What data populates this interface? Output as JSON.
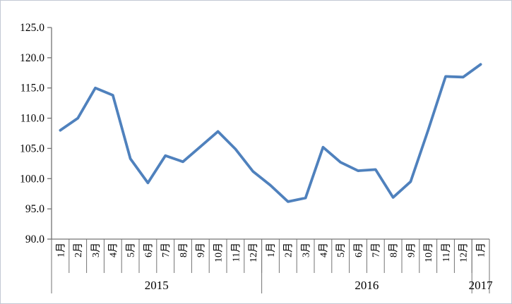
{
  "chart_data": {
    "type": "line",
    "title": "",
    "xlabel": "",
    "ylabel": "",
    "x_labels": [
      "1月",
      "2月",
      "3月",
      "4月",
      "5月",
      "6月",
      "7月",
      "8月",
      "9月",
      "10月",
      "11月",
      "12月",
      "1月",
      "2月",
      "3月",
      "4月",
      "5月",
      "6月",
      "7月",
      "8月",
      "9月",
      "10月",
      "11月",
      "12月",
      "1月"
    ],
    "year_groups": [
      {
        "label": "2015",
        "count": 12
      },
      {
        "label": "2016",
        "count": 12
      },
      {
        "label": "2017",
        "count": 1
      }
    ],
    "series": [
      {
        "name": "",
        "values": [
          108.0,
          110.0,
          115.0,
          113.8,
          103.3,
          99.3,
          103.8,
          102.8,
          105.3,
          107.8,
          104.9,
          101.2,
          98.9,
          96.2,
          96.8,
          105.2,
          102.7,
          101.3,
          101.5,
          96.9,
          99.5,
          108.0,
          116.9,
          116.8,
          118.9
        ],
        "color": "#4F81BD"
      }
    ],
    "ylim": [
      90,
      125
    ],
    "ytick_step": 5,
    "ytick_labels": [
      "90.0",
      "95.0",
      "100.0",
      "105.0",
      "110.0",
      "115.0",
      "120.0",
      "125.0"
    ],
    "legend": "none",
    "grid": "off",
    "axis_color": "#737373",
    "text_color": "#000000",
    "background_color": "#ffffff",
    "border_color": "#c3c8d4"
  }
}
